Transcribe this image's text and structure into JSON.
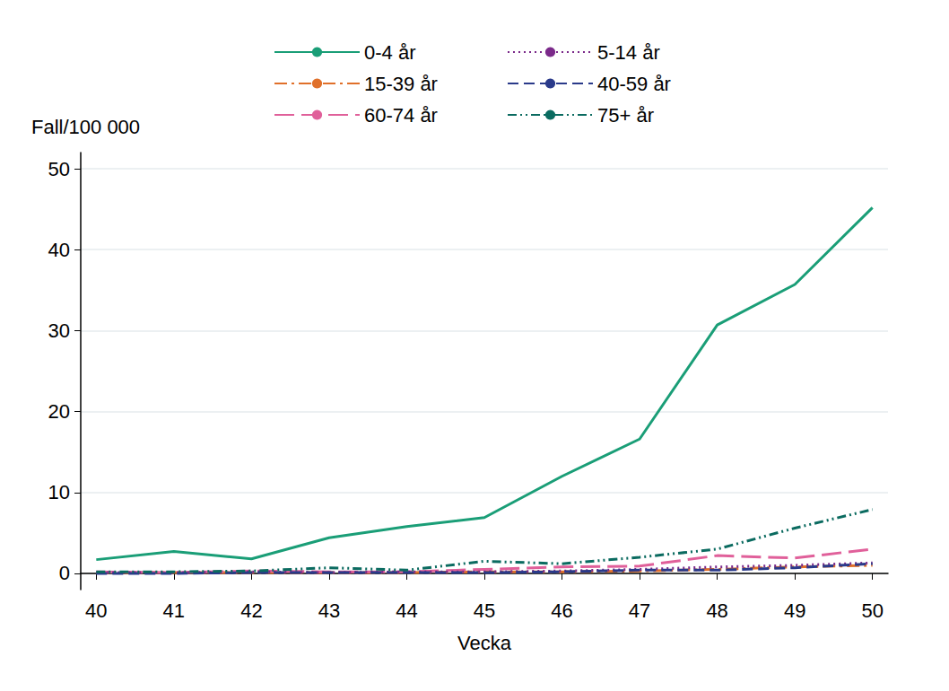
{
  "chart_data": {
    "type": "line",
    "x_label": "Vecka",
    "y_label": "Fall/100 000",
    "x": [
      40,
      41,
      42,
      43,
      44,
      45,
      46,
      47,
      48,
      49,
      50
    ],
    "xlim": [
      39.8,
      50.2
    ],
    "xticks": [
      40,
      41,
      42,
      43,
      44,
      45,
      46,
      47,
      48,
      49,
      50
    ],
    "ylim": [
      -2,
      52
    ],
    "yticks": [
      0,
      10,
      20,
      30,
      40,
      50
    ],
    "grid": true,
    "legend": "top",
    "series": [
      {
        "name": "0-4 år",
        "color": "#1a9e77",
        "line_style": "solid",
        "values": [
          1.7,
          2.7,
          1.8,
          4.4,
          5.8,
          6.9,
          12.0,
          16.6,
          30.7,
          35.7,
          45.2
        ]
      },
      {
        "name": "15-39 år",
        "color": "#e0702a",
        "line_style": "dashdot",
        "values": [
          0.1,
          0.1,
          0.1,
          0.1,
          0.1,
          0.2,
          0.2,
          0.3,
          0.5,
          0.8,
          1.0
        ]
      },
      {
        "name": "60-74 år",
        "color": "#e0609a",
        "line_style": "longdash",
        "values": [
          0.2,
          0.1,
          0.3,
          0.2,
          0.2,
          0.5,
          0.8,
          0.9,
          2.2,
          1.9,
          3.0
        ]
      },
      {
        "name": "5-14 år",
        "color": "#7b2a8a",
        "line_style": "dotted",
        "values": [
          0.1,
          0.1,
          0.2,
          0.1,
          0.2,
          0.2,
          0.3,
          0.5,
          0.8,
          1.0,
          1.3
        ]
      },
      {
        "name": "40-59 år",
        "color": "#2a3a8a",
        "line_style": "dashed",
        "values": [
          0.0,
          0.0,
          0.1,
          0.1,
          0.1,
          0.1,
          0.2,
          0.4,
          0.4,
          0.7,
          1.2
        ]
      },
      {
        "name": "75+ år",
        "color": "#0b6b60",
        "line_style": "dashdotdot",
        "values": [
          0.2,
          0.2,
          0.3,
          0.7,
          0.4,
          1.5,
          1.2,
          2.0,
          3.0,
          5.6,
          7.9
        ]
      }
    ]
  }
}
